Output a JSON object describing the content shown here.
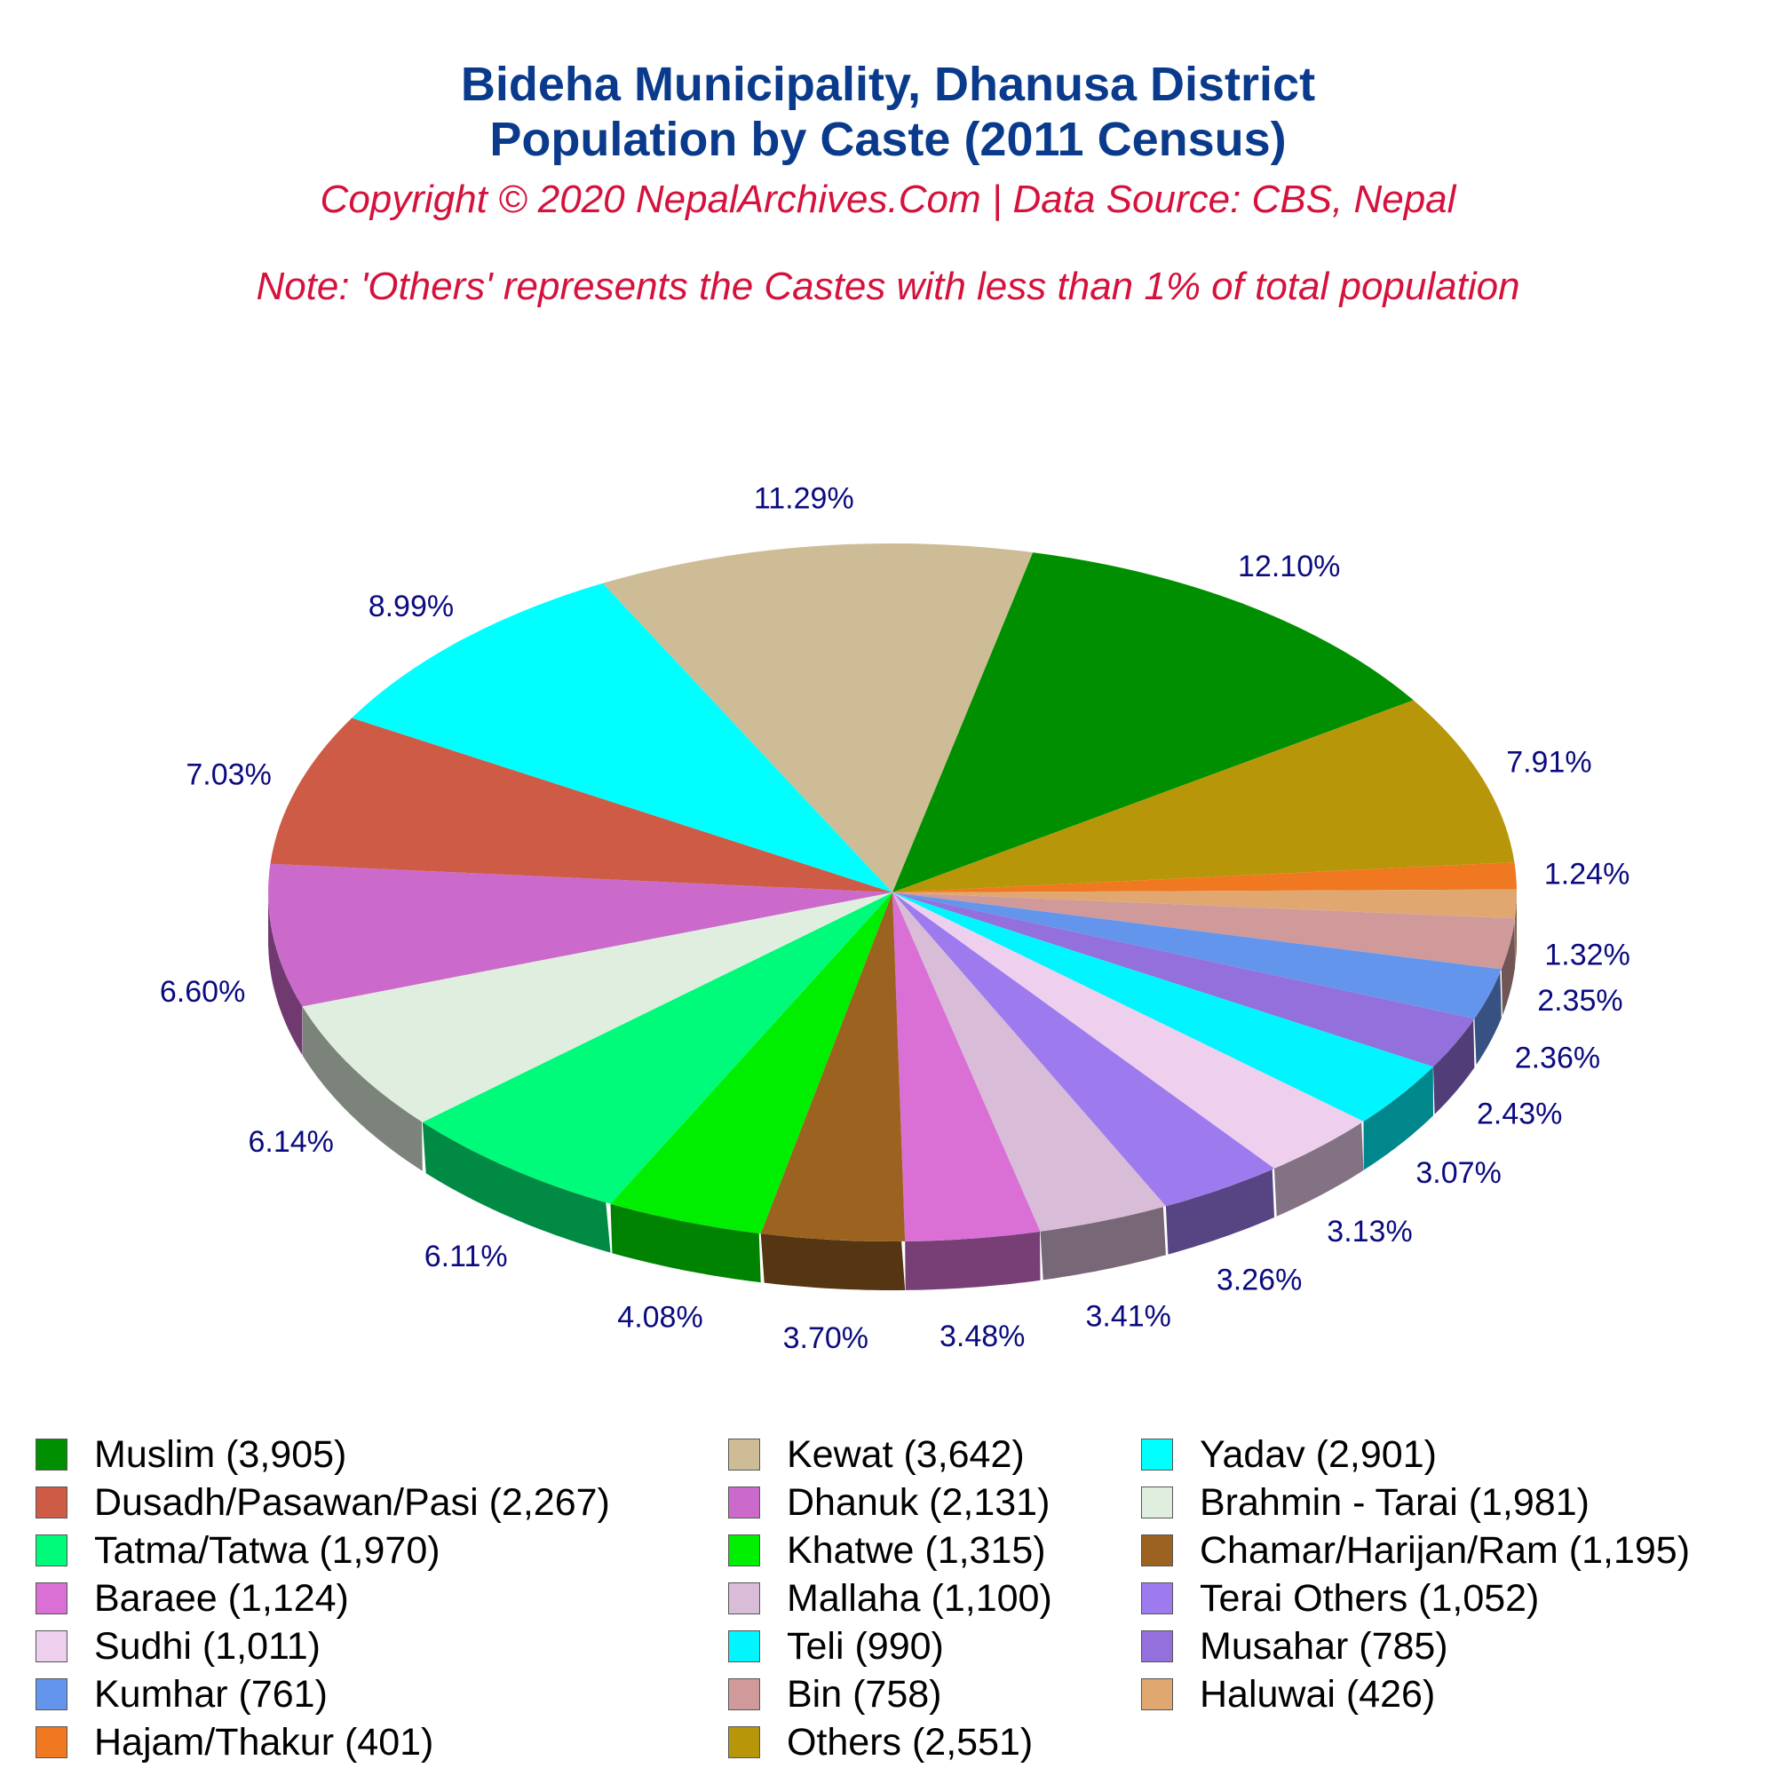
{
  "header": {
    "title_line1": "Bideha Municipality, Dhanusa District",
    "title_line2": "Population by Caste (2011 Census)",
    "copyright": "Copyright © 2020 NepalArchives.Com | Data Source: CBS, Nepal",
    "note": "Note: 'Others' represents the Castes with less than 1% of total population"
  },
  "chart_data": {
    "type": "pie",
    "three_d": true,
    "start_angle_deg": 77,
    "direction": "clockwise",
    "slices": [
      {
        "legend": "Muslim (3,905)",
        "value": 3905,
        "percent_label": "12.10%",
        "color": "#008f00"
      },
      {
        "legend": "Others (2,551)",
        "value": 2551,
        "percent_label": "7.91%",
        "color": "#b8960a"
      },
      {
        "legend": "Hajam/Thakur (401)",
        "value": 401,
        "percent_label": "1.24%",
        "color": "#f07820"
      },
      {
        "legend": "Haluwai (426)",
        "value": 426,
        "percent_label": "1.32%",
        "color": "#e0a870"
      },
      {
        "legend": "Bin (758)",
        "value": 758,
        "percent_label": "2.35%",
        "color": "#d09a9a"
      },
      {
        "legend": "Kumhar (761)",
        "value": 761,
        "percent_label": "2.36%",
        "color": "#6495ed"
      },
      {
        "legend": "Musahar (785)",
        "value": 785,
        "percent_label": "2.43%",
        "color": "#9370db"
      },
      {
        "legend": "Teli (990)",
        "value": 990,
        "percent_label": "3.07%",
        "color": "#00f5ff"
      },
      {
        "legend": "Sudhi (1,011)",
        "value": 1011,
        "percent_label": "3.13%",
        "color": "#eed0ee"
      },
      {
        "legend": "Terai Others (1,052)",
        "value": 1052,
        "percent_label": "3.26%",
        "color": "#9d7bef"
      },
      {
        "legend": "Mallaha (1,100)",
        "value": 1100,
        "percent_label": "3.41%",
        "color": "#d8bcd8"
      },
      {
        "legend": "Baraee (1,124)",
        "value": 1124,
        "percent_label": "3.48%",
        "color": "#da70d6"
      },
      {
        "legend": "Chamar/Harijan/Ram (1,195)",
        "value": 1195,
        "percent_label": "3.70%",
        "color": "#9c6320"
      },
      {
        "legend": "Khatwe (1,315)",
        "value": 1315,
        "percent_label": "4.08%",
        "color": "#00ee00"
      },
      {
        "legend": "Tatma/Tatwa (1,970)",
        "value": 1970,
        "percent_label": "6.11%",
        "color": "#00fa7a"
      },
      {
        "legend": "Brahmin - Tarai (1,981)",
        "value": 1981,
        "percent_label": "6.14%",
        "color": "#e0eee0"
      },
      {
        "legend": "Dhanuk (2,131)",
        "value": 2131,
        "percent_label": "6.60%",
        "color": "#cc6acc"
      },
      {
        "legend": "Dusadh/Pasawan/Pasi (2,267)",
        "value": 2267,
        "percent_label": "7.03%",
        "color": "#cd5b45"
      },
      {
        "legend": "Yadav (2,901)",
        "value": 2901,
        "percent_label": "8.99%",
        "color": "#00ffff"
      },
      {
        "legend": "Kewat (3,642)",
        "value": 3642,
        "percent_label": "11.29%",
        "color": "#cdbc96"
      }
    ],
    "legend_order": [
      "Muslim (3,905)",
      "Kewat (3,642)",
      "Yadav (2,901)",
      "Dusadh/Pasawan/Pasi (2,267)",
      "Dhanuk (2,131)",
      "Brahmin - Tarai (1,981)",
      "Tatma/Tatwa (1,970)",
      "Khatwe (1,315)",
      "Chamar/Harijan/Ram (1,195)",
      "Baraee (1,124)",
      "Mallaha (1,100)",
      "Terai Others (1,052)",
      "Sudhi (1,011)",
      "Teli (990)",
      "Musahar (785)",
      "Kumhar (761)",
      "Bin (758)",
      "Haluwai (426)",
      "Hajam/Thakur (401)",
      "Others (2,551)"
    ],
    "legend_position": "bottom",
    "legend_columns": 3
  }
}
